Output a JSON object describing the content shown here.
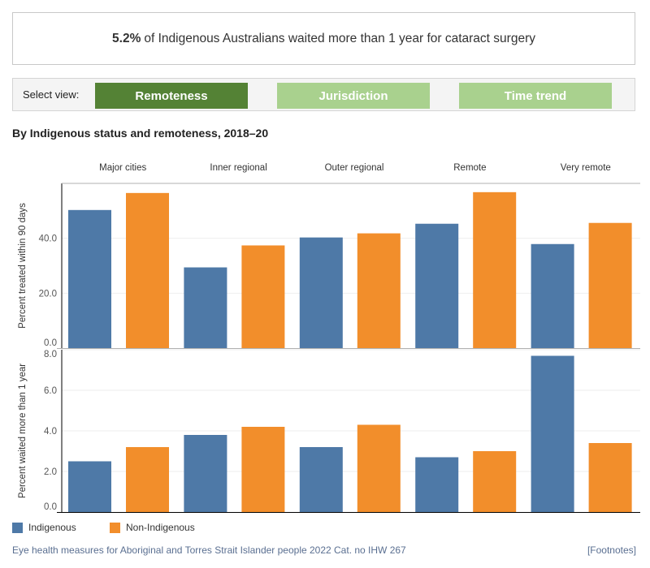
{
  "headline": {
    "bold": "5.2%",
    "text": "of Indigenous Australians waited more than 1 year for cataract surgery"
  },
  "view_selector": {
    "label": "Select view:",
    "buttons": [
      {
        "label": "Remoteness",
        "active": true
      },
      {
        "label": "Jurisdiction",
        "active": false
      },
      {
        "label": "Time trend",
        "active": false
      }
    ],
    "active_color": "#548235",
    "inactive_color": "#a9d18e"
  },
  "chart_title": "By Indigenous status and remoteness, 2018–20",
  "chart_data": [
    {
      "type": "bar",
      "categories": [
        "Major cities",
        "Inner regional",
        "Outer regional",
        "Remote",
        "Very remote"
      ],
      "ylabel": "Percent treated within 90 days",
      "yticks": [
        "0.0",
        "20.0",
        "40.0"
      ],
      "ylim": [
        0,
        60
      ],
      "grid": true,
      "series": [
        {
          "name": "Indigenous",
          "color": "#4e79a7",
          "values": [
            50.3,
            29.4,
            40.3,
            45.3,
            37.9
          ]
        },
        {
          "name": "Non-Indigenous",
          "color": "#f28e2b",
          "values": [
            56.5,
            37.4,
            41.8,
            56.8,
            45.6
          ]
        }
      ]
    },
    {
      "type": "bar",
      "categories": [
        "Major cities",
        "Inner regional",
        "Outer regional",
        "Remote",
        "Very remote"
      ],
      "ylabel": "Percent waited more than 1 year",
      "yticks": [
        "0.0",
        "2.0",
        "4.0",
        "6.0",
        "8.0"
      ],
      "ylim": [
        0,
        8
      ],
      "grid": true,
      "series": [
        {
          "name": "Indigenous",
          "color": "#4e79a7",
          "values": [
            2.5,
            3.8,
            3.2,
            2.7,
            7.7
          ]
        },
        {
          "name": "Non-Indigenous",
          "color": "#f28e2b",
          "values": [
            3.2,
            4.2,
            4.3,
            3.0,
            3.4
          ]
        }
      ]
    }
  ],
  "legend": [
    {
      "label": "Indigenous",
      "color": "#4e79a7"
    },
    {
      "label": "Non-Indigenous",
      "color": "#f28e2b"
    }
  ],
  "footer": {
    "source": "Eye health measures for Aboriginal and Torres Strait Islander people 2022 Cat. no IHW 267",
    "footnotes": "[Footnotes]"
  }
}
